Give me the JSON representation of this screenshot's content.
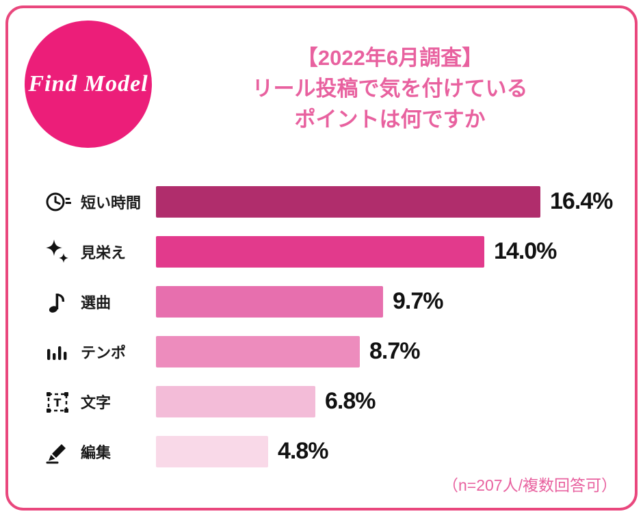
{
  "frame": {
    "border_color": "#e9477d"
  },
  "logo": {
    "text": "Find Model",
    "bg_color": "#ec1e79"
  },
  "title": {
    "line1": "【2022年6月調査】",
    "line2": "リール投稿で気を付けている",
    "line3": "ポイントは何ですか",
    "color": "#e8619f"
  },
  "footnote": {
    "text": "（n=207人/複数回答可）",
    "color": "#e8619f"
  },
  "chart_data": {
    "type": "bar",
    "orientation": "horizontal",
    "title": "【2022年6月調査】リール投稿で気を付けているポイントは何ですか",
    "categories": [
      "短い時間",
      "見栄え",
      "選曲",
      "テンポ",
      "文字",
      "編集"
    ],
    "values": [
      16.4,
      14.0,
      9.7,
      8.7,
      6.8,
      4.8
    ],
    "value_labels": [
      "16.4%",
      "14.0%",
      "9.7%",
      "8.7%",
      "6.8%",
      "4.8%"
    ],
    "unit": "%",
    "xlim": [
      0,
      16.4
    ],
    "grid": false,
    "legend": false,
    "icons": [
      "clock-icon",
      "sparkles-icon",
      "music-note-icon",
      "equalizer-icon",
      "text-box-icon",
      "pencil-icon"
    ],
    "bar_colors": [
      "#b02d6c",
      "#e23a8c",
      "#e76fae",
      "#ed8cbd",
      "#f3bcd8",
      "#f9d9e8"
    ],
    "sample_note": "n=207人/複数回答可"
  }
}
